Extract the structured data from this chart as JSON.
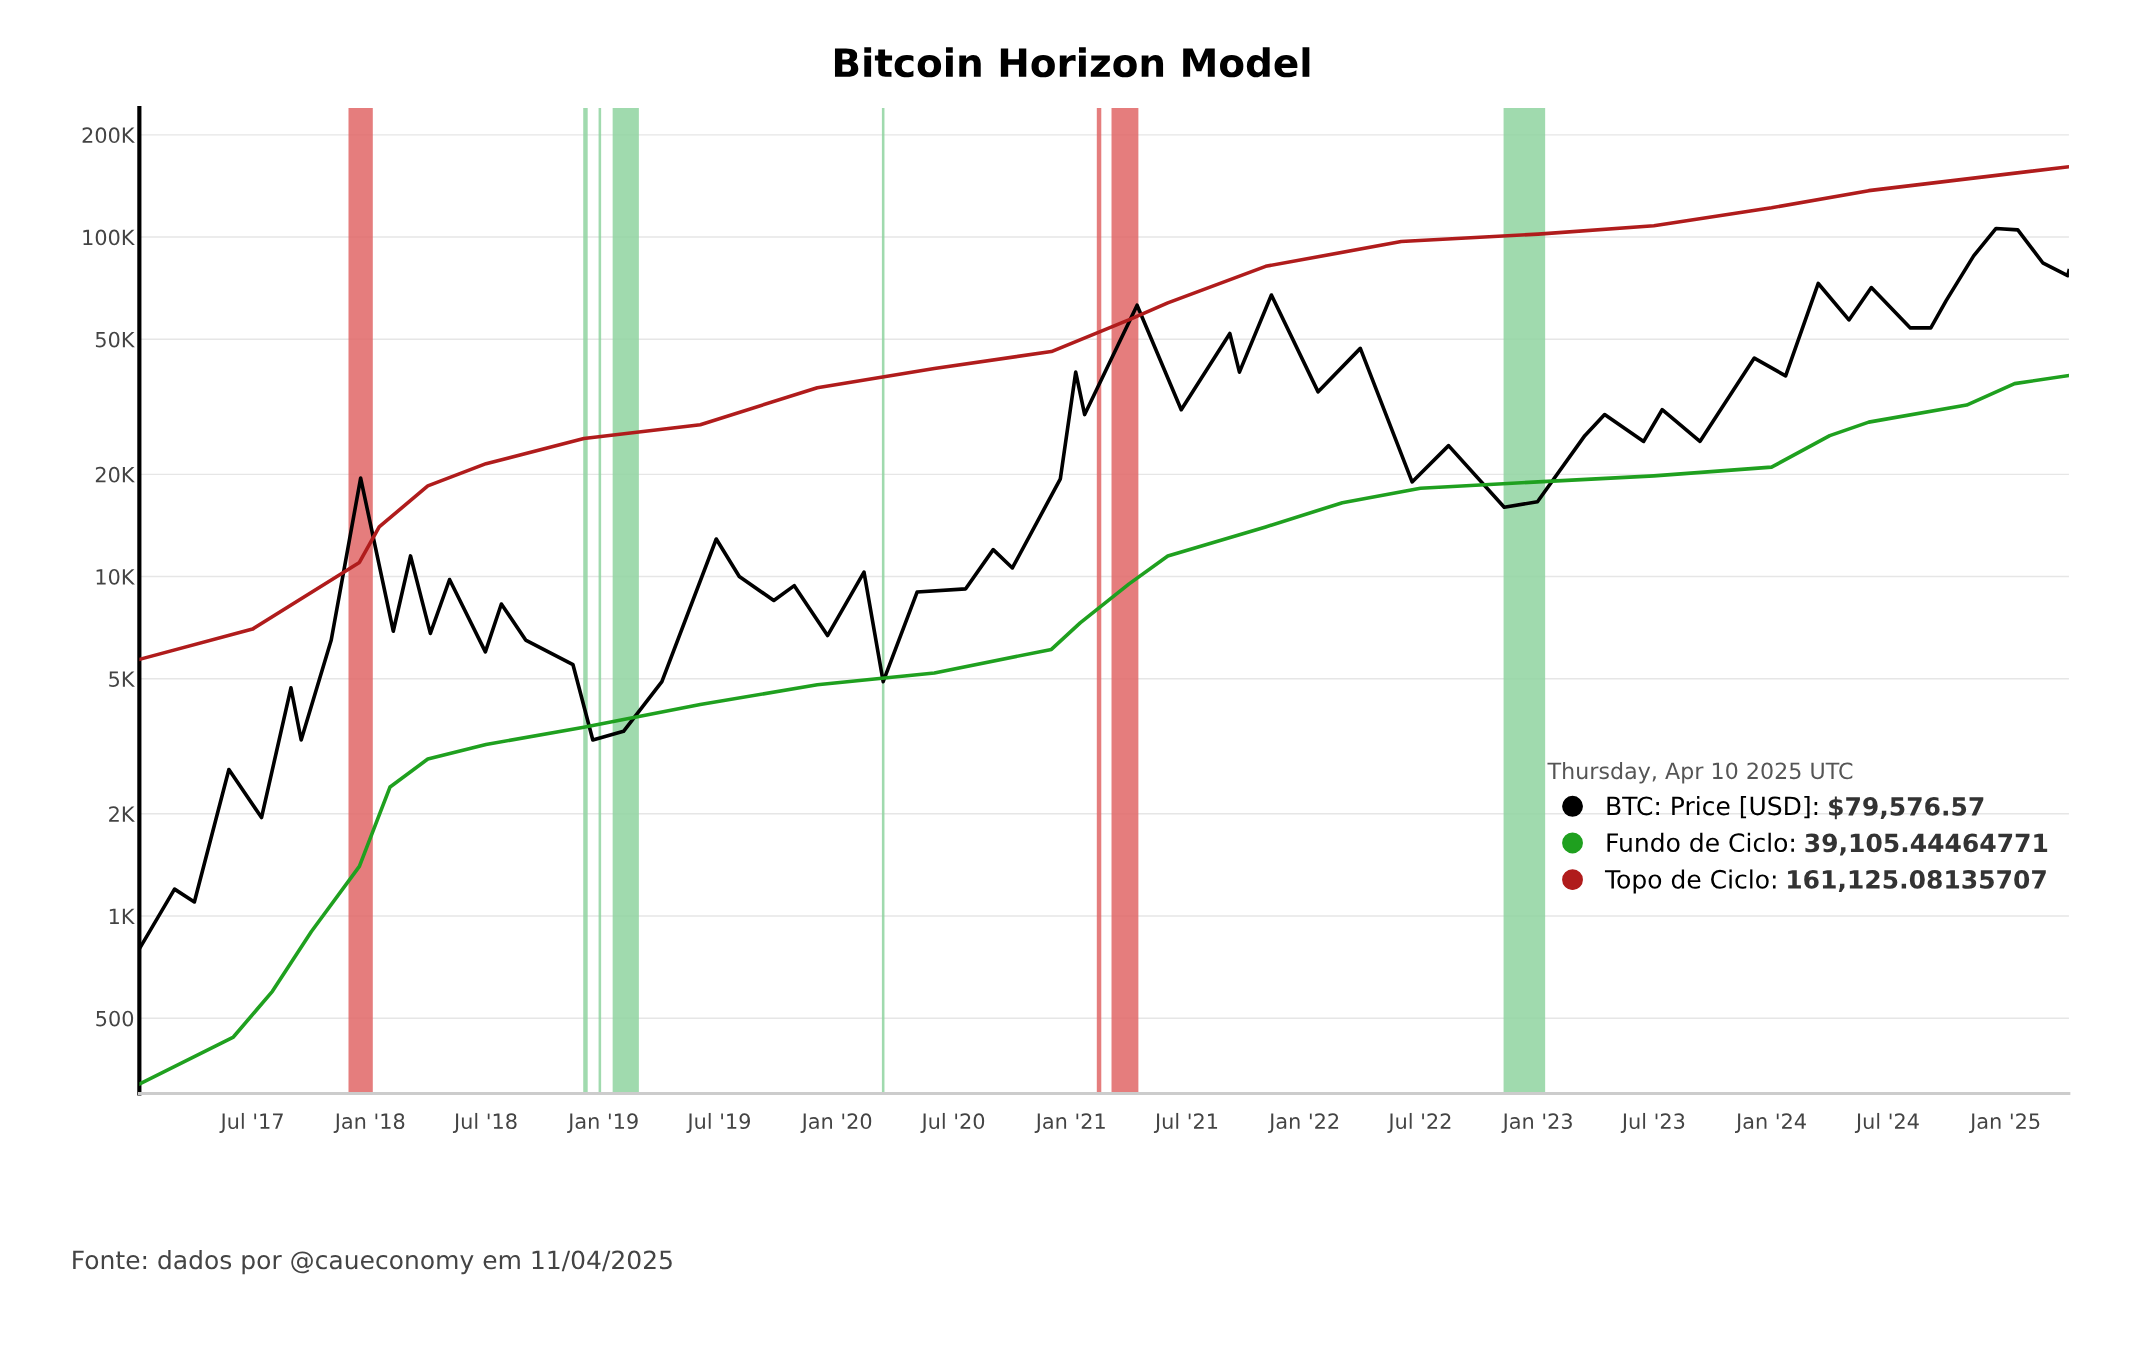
{
  "chart_data": {
    "type": "line",
    "title": "Bitcoin Horizon Model",
    "log": "y",
    "grid": "y",
    "legend": "bottom right",
    "legend_title": "Thursday, Apr 10 2025 UTC",
    "xlim": [
      "2017-01-05",
      "2025-04-10"
    ],
    "ylim": [
      300,
      240000
    ],
    "xticks": [
      {
        "value": "2017-07-01",
        "label": "Jul '17"
      },
      {
        "value": "2018-01-01",
        "label": "Jan '18"
      },
      {
        "value": "2018-07-01",
        "label": "Jul '18"
      },
      {
        "value": "2019-01-01",
        "label": "Jan '19"
      },
      {
        "value": "2019-07-01",
        "label": "Jul '19"
      },
      {
        "value": "2020-01-01",
        "label": "Jan '20"
      },
      {
        "value": "2020-07-01",
        "label": "Jul '20"
      },
      {
        "value": "2021-01-01",
        "label": "Jan '21"
      },
      {
        "value": "2021-07-01",
        "label": "Jul '21"
      },
      {
        "value": "2022-01-01",
        "label": "Jan '22"
      },
      {
        "value": "2022-07-01",
        "label": "Jul '22"
      },
      {
        "value": "2023-01-01",
        "label": "Jan '23"
      },
      {
        "value": "2023-07-01",
        "label": "Jul '23"
      },
      {
        "value": "2024-01-01",
        "label": "Jan '24"
      },
      {
        "value": "2024-07-01",
        "label": "Jul '24"
      },
      {
        "value": "2025-01-01",
        "label": "Jan '25"
      }
    ],
    "yticks": [
      {
        "value": 500,
        "label": "500"
      },
      {
        "value": 1000,
        "label": "1K"
      },
      {
        "value": 2000,
        "label": "2K"
      },
      {
        "value": 5000,
        "label": "5K"
      },
      {
        "value": 10000,
        "label": "10K"
      },
      {
        "value": 20000,
        "label": "20K"
      },
      {
        "value": 50000,
        "label": "50K"
      },
      {
        "value": 100000,
        "label": "100K"
      },
      {
        "value": 200000,
        "label": "200K"
      }
    ],
    "bands": [
      {
        "axis": "x",
        "from": "2017-11-28",
        "to": "2018-01-05",
        "label": null,
        "color": "#e06666"
      },
      {
        "axis": "x",
        "from": "2021-02-10",
        "to": "2021-02-17",
        "label": null,
        "color": "#e06666"
      },
      {
        "axis": "x",
        "from": "2021-03-05",
        "to": "2021-04-16",
        "label": null,
        "color": "#e06666"
      },
      {
        "axis": "x",
        "from": "2018-11-30",
        "to": "2018-12-07",
        "label": null,
        "color": "#8fd3a0"
      },
      {
        "axis": "x",
        "from": "2018-12-24",
        "to": "2018-12-28",
        "label": null,
        "color": "#8fd3a0"
      },
      {
        "axis": "x",
        "from": "2019-01-15",
        "to": "2019-02-25",
        "label": null,
        "color": "#8fd3a0"
      },
      {
        "axis": "x",
        "from": "2020-03-11",
        "to": "2020-03-15",
        "label": null,
        "color": "#8fd3a0"
      },
      {
        "axis": "x",
        "from": "2022-11-08",
        "to": "2023-01-12",
        "label": null,
        "color": "#8fd3a0"
      }
    ],
    "series": [
      {
        "name": "BTC: Price [USD]:",
        "color": "#000000",
        "x": [
          "2017-01-05",
          "2017-03-01",
          "2017-04-01",
          "2017-05-25",
          "2017-07-15",
          "2017-08-30",
          "2017-09-15",
          "2017-11-01",
          "2017-12-17",
          "2018-02-06",
          "2018-03-05",
          "2018-04-05",
          "2018-05-05",
          "2018-06-30",
          "2018-07-25",
          "2018-09-01",
          "2018-11-14",
          "2018-12-15",
          "2019-02-01",
          "2019-04-02",
          "2019-06-26",
          "2019-08-01",
          "2019-09-24",
          "2019-10-26",
          "2019-12-17",
          "2020-02-12",
          "2020-03-13",
          "2020-05-05",
          "2020-07-20",
          "2020-09-01",
          "2020-10-01",
          "2020-12-15",
          "2021-01-08",
          "2021-01-22",
          "2021-04-14",
          "2021-06-22",
          "2021-09-06",
          "2021-09-21",
          "2021-11-10",
          "2022-01-22",
          "2022-03-29",
          "2022-06-18",
          "2022-08-14",
          "2022-11-09",
          "2022-12-31",
          "2023-03-15",
          "2023-04-15",
          "2023-06-15",
          "2023-07-14",
          "2023-09-11",
          "2023-12-05",
          "2024-01-23",
          "2024-03-14",
          "2024-05-01",
          "2024-06-05",
          "2024-08-05",
          "2024-09-06",
          "2024-09-30",
          "2024-11-12",
          "2024-12-17",
          "2025-01-20",
          "2025-02-28",
          "2025-04-08",
          "2025-04-10"
        ],
        "values": [
          800,
          1200,
          1100,
          2700,
          1950,
          4700,
          3300,
          6500,
          19500,
          6900,
          11500,
          6800,
          9800,
          6000,
          8300,
          6500,
          5500,
          3300,
          3500,
          4900,
          12900,
          10000,
          8500,
          9400,
          6700,
          10300,
          4900,
          9000,
          9200,
          12000,
          10600,
          19400,
          40000,
          30000,
          63000,
          31000,
          52000,
          40000,
          67500,
          35000,
          47000,
          19000,
          24300,
          16000,
          16600,
          26000,
          30000,
          25000,
          31000,
          25000,
          44000,
          39000,
          73000,
          57000,
          71000,
          54000,
          54000,
          65000,
          88000,
          106000,
          105000,
          84000,
          77000,
          79576.57
        ]
      },
      {
        "name": "Fundo de Ciclo:",
        "color": "#1fa01f",
        "x": [
          "2017-01-05",
          "2017-06-01",
          "2017-08-01",
          "2017-10-01",
          "2017-12-15",
          "2018-02-01",
          "2018-04-01",
          "2018-07-01",
          "2018-12-01",
          "2019-06-01",
          "2019-12-01",
          "2020-06-01",
          "2020-12-01",
          "2021-01-15",
          "2021-04-01",
          "2021-06-01",
          "2021-11-01",
          "2022-03-01",
          "2022-07-01",
          "2023-01-01",
          "2023-07-01",
          "2024-01-01",
          "2024-04-01",
          "2024-06-01",
          "2024-11-01",
          "2025-01-15",
          "2025-04-10"
        ],
        "values": [
          320,
          440,
          600,
          900,
          1400,
          2400,
          2900,
          3200,
          3600,
          4200,
          4800,
          5200,
          6100,
          7300,
          9500,
          11500,
          14000,
          16500,
          18200,
          19000,
          19800,
          21000,
          26000,
          28500,
          32000,
          37000,
          39105.44464771
        ]
      },
      {
        "name": "Topo de Ciclo:",
        "color": "#b01c1c",
        "x": [
          "2017-01-05",
          "2017-07-01",
          "2017-12-15",
          "2018-01-15",
          "2018-04-01",
          "2018-07-01",
          "2018-12-01",
          "2019-06-01",
          "2019-12-01",
          "2020-06-01",
          "2020-12-01",
          "2021-04-01",
          "2021-06-01",
          "2021-11-01",
          "2022-06-01",
          "2023-01-01",
          "2023-07-01",
          "2024-01-01",
          "2024-06-01",
          "2025-04-10"
        ],
        "values": [
          5700,
          7000,
          11000,
          14000,
          18500,
          21500,
          25500,
          28000,
          36000,
          41000,
          46000,
          57000,
          64000,
          82000,
          97000,
          102000,
          108000,
          122000,
          137000,
          161125.08135707
        ]
      }
    ],
    "annotations": [
      "$79,576.57",
      "39,105.44464771",
      "161,125.08135707",
      "Fonte: dados por @caueconomy em 11/04/2025"
    ]
  }
}
